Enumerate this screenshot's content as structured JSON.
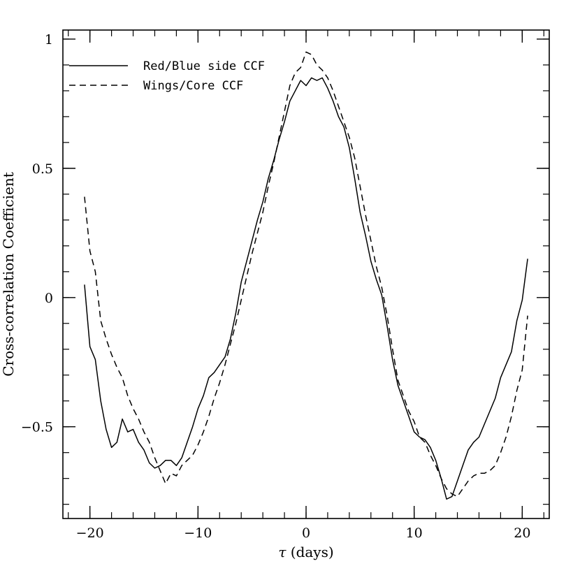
{
  "chart_data": {
    "type": "line",
    "xlabel_symbol": "τ",
    "xlabel_rest": " (days)",
    "ylabel": "Cross-correlation Coefficient",
    "xlim": [
      -22.5,
      22.5
    ],
    "ylim": [
      -0.855,
      1.035
    ],
    "x_ticks": [
      -20,
      -10,
      0,
      10,
      20
    ],
    "x_tick_labels": [
      "−20",
      "−10",
      "0",
      "10",
      "20"
    ],
    "y_ticks": [
      -0.5,
      0,
      0.5,
      1
    ],
    "y_tick_labels": [
      "−0.5",
      "0",
      "0.5",
      "1"
    ],
    "x_minor_step": 2,
    "y_minor_step": 0.1,
    "grid": false,
    "legend_position": "top-left",
    "series": [
      {
        "name": "Red/Blue side CCF",
        "dash": "solid",
        "x": [
          -20.5,
          -20,
          -19.5,
          -19,
          -18.5,
          -18,
          -17.5,
          -17,
          -16.5,
          -16,
          -15.5,
          -15,
          -14.5,
          -14,
          -13.5,
          -13,
          -12.5,
          -12,
          -11.5,
          -11,
          -10.5,
          -10,
          -9.5,
          -9,
          -8.5,
          -8,
          -7.5,
          -7,
          -6.5,
          -6,
          -5.5,
          -5,
          -4.5,
          -4,
          -3.5,
          -3,
          -2.5,
          -2,
          -1.5,
          -1,
          -0.5,
          0,
          0.5,
          1,
          1.5,
          2,
          2.5,
          3,
          3.5,
          4,
          4.5,
          5,
          5.5,
          6,
          6.5,
          7,
          7.5,
          8,
          8.5,
          9,
          9.5,
          10,
          10.5,
          11,
          11.5,
          12,
          12.5,
          13,
          13.5,
          14,
          14.5,
          15,
          15.5,
          16,
          16.5,
          17,
          17.5,
          18,
          18.5,
          19,
          19.5,
          20,
          20.5
        ],
        "y": [
          0.05,
          -0.19,
          -0.24,
          -0.4,
          -0.51,
          -0.58,
          -0.56,
          -0.47,
          -0.52,
          -0.51,
          -0.56,
          -0.59,
          -0.64,
          -0.66,
          -0.65,
          -0.63,
          -0.63,
          -0.65,
          -0.62,
          -0.56,
          -0.5,
          -0.43,
          -0.38,
          -0.31,
          -0.29,
          -0.26,
          -0.23,
          -0.16,
          -0.06,
          0.06,
          0.14,
          0.22,
          0.3,
          0.37,
          0.46,
          0.53,
          0.61,
          0.68,
          0.76,
          0.8,
          0.84,
          0.82,
          0.85,
          0.84,
          0.85,
          0.81,
          0.76,
          0.7,
          0.66,
          0.58,
          0.46,
          0.33,
          0.24,
          0.14,
          0.07,
          0.01,
          -0.11,
          -0.24,
          -0.34,
          -0.4,
          -0.46,
          -0.52,
          -0.54,
          -0.55,
          -0.58,
          -0.63,
          -0.7,
          -0.78,
          -0.77,
          -0.71,
          -0.65,
          -0.59,
          -0.56,
          -0.54,
          -0.49,
          -0.44,
          -0.39,
          -0.31,
          -0.26,
          -0.21,
          -0.09,
          -0.01,
          0.15
        ]
      },
      {
        "name": "Wings/Core CCF",
        "dash": "dashed",
        "x": [
          -20.5,
          -20,
          -19.5,
          -19,
          -18.5,
          -18,
          -17.5,
          -17,
          -16.5,
          -16,
          -15.5,
          -15,
          -14.5,
          -14,
          -13.5,
          -13,
          -12.5,
          -12,
          -11.5,
          -11,
          -10.5,
          -10,
          -9.5,
          -9,
          -8.5,
          -8,
          -7.5,
          -7,
          -6.5,
          -6,
          -5.5,
          -5,
          -4.5,
          -4,
          -3.5,
          -3,
          -2.5,
          -2,
          -1.5,
          -1,
          -0.5,
          0,
          0.5,
          1,
          1.5,
          2,
          2.5,
          3,
          3.5,
          4,
          4.5,
          5,
          5.5,
          6,
          6.5,
          7,
          7.5,
          8,
          8.5,
          9,
          9.5,
          10,
          10.5,
          11,
          11.5,
          12,
          12.5,
          13,
          13.5,
          14,
          14.5,
          15,
          15.5,
          16,
          16.5,
          17,
          17.5,
          18,
          18.5,
          19,
          19.5,
          20,
          20.5
        ],
        "y": [
          0.39,
          0.18,
          0.1,
          -0.09,
          -0.16,
          -0.22,
          -0.27,
          -0.31,
          -0.38,
          -0.43,
          -0.47,
          -0.52,
          -0.56,
          -0.62,
          -0.67,
          -0.72,
          -0.68,
          -0.69,
          -0.65,
          -0.63,
          -0.61,
          -0.57,
          -0.52,
          -0.46,
          -0.39,
          -0.33,
          -0.26,
          -0.18,
          -0.1,
          -0.01,
          0.08,
          0.17,
          0.25,
          0.33,
          0.43,
          0.52,
          0.62,
          0.72,
          0.82,
          0.87,
          0.89,
          0.95,
          0.94,
          0.9,
          0.88,
          0.85,
          0.8,
          0.74,
          0.68,
          0.62,
          0.54,
          0.43,
          0.32,
          0.22,
          0.12,
          0.04,
          -0.07,
          -0.2,
          -0.32,
          -0.38,
          -0.44,
          -0.48,
          -0.54,
          -0.56,
          -0.61,
          -0.65,
          -0.7,
          -0.74,
          -0.76,
          -0.77,
          -0.74,
          -0.71,
          -0.69,
          -0.68,
          -0.68,
          -0.67,
          -0.65,
          -0.6,
          -0.54,
          -0.46,
          -0.36,
          -0.28,
          -0.07
        ]
      }
    ]
  }
}
